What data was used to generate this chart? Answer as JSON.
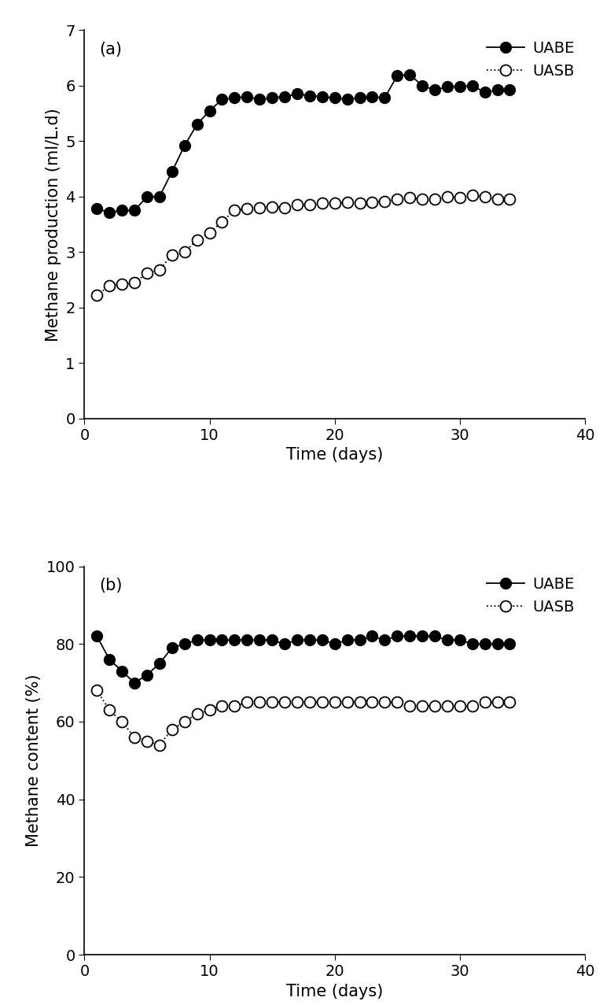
{
  "uabe_production_x": [
    1,
    2,
    3,
    4,
    5,
    6,
    7,
    8,
    9,
    10,
    11,
    12,
    13,
    14,
    15,
    16,
    17,
    18,
    19,
    20,
    21,
    22,
    23,
    24,
    25,
    26,
    27,
    28,
    29,
    30,
    31,
    32,
    33,
    34
  ],
  "uabe_production_y": [
    3.78,
    3.72,
    3.75,
    3.75,
    4.0,
    4.0,
    4.45,
    4.92,
    5.3,
    5.55,
    5.75,
    5.78,
    5.8,
    5.75,
    5.78,
    5.8,
    5.85,
    5.82,
    5.8,
    5.78,
    5.75,
    5.78,
    5.8,
    5.78,
    6.18,
    6.2,
    6.0,
    5.92,
    5.98,
    5.98,
    6.0,
    5.88,
    5.92,
    5.92
  ],
  "uasb_production_x": [
    1,
    2,
    3,
    4,
    5,
    6,
    7,
    8,
    9,
    10,
    11,
    12,
    13,
    14,
    15,
    16,
    17,
    18,
    19,
    20,
    21,
    22,
    23,
    24,
    25,
    26,
    27,
    28,
    29,
    30,
    31,
    32,
    33,
    34
  ],
  "uasb_production_y": [
    2.22,
    2.4,
    2.42,
    2.45,
    2.62,
    2.68,
    2.95,
    3.0,
    3.22,
    3.35,
    3.55,
    3.75,
    3.78,
    3.8,
    3.82,
    3.8,
    3.85,
    3.85,
    3.88,
    3.88,
    3.9,
    3.88,
    3.9,
    3.92,
    3.95,
    3.98,
    3.95,
    3.95,
    4.0,
    3.98,
    4.02,
    4.0,
    3.95,
    3.95
  ],
  "uabe_content_x": [
    1,
    2,
    3,
    4,
    5,
    6,
    7,
    8,
    9,
    10,
    11,
    12,
    13,
    14,
    15,
    16,
    17,
    18,
    19,
    20,
    21,
    22,
    23,
    24,
    25,
    26,
    27,
    28,
    29,
    30,
    31,
    32,
    33,
    34
  ],
  "uabe_content_y": [
    82,
    76,
    73,
    70,
    72,
    75,
    79,
    80,
    81,
    81,
    81,
    81,
    81,
    81,
    81,
    80,
    81,
    81,
    81,
    80,
    81,
    81,
    82,
    81,
    82,
    82,
    82,
    82,
    81,
    81,
    80,
    80,
    80,
    80
  ],
  "uasb_content_x": [
    1,
    2,
    3,
    4,
    5,
    6,
    7,
    8,
    9,
    10,
    11,
    12,
    13,
    14,
    15,
    16,
    17,
    18,
    19,
    20,
    21,
    22,
    23,
    24,
    25,
    26,
    27,
    28,
    29,
    30,
    31,
    32,
    33,
    34
  ],
  "uasb_content_y": [
    68,
    63,
    60,
    56,
    55,
    54,
    58,
    60,
    62,
    63,
    64,
    64,
    65,
    65,
    65,
    65,
    65,
    65,
    65,
    65,
    65,
    65,
    65,
    65,
    65,
    64,
    64,
    64,
    64,
    64,
    64,
    65,
    65,
    65
  ],
  "plot_a_ylabel": "Methane production (ml/L.d)",
  "plot_b_ylabel": "Methane content (%)",
  "xlabel": "Time (days)",
  "label_a": "(a)",
  "label_b": "(b)",
  "legend_uabe": "UABE",
  "legend_uasb": "UASB",
  "production_ylim": [
    0,
    7
  ],
  "content_ylim": [
    0,
    100
  ],
  "xlim": [
    0,
    40
  ],
  "production_yticks": [
    0,
    1,
    2,
    3,
    4,
    5,
    6,
    7
  ],
  "content_yticks": [
    0,
    20,
    40,
    60,
    80,
    100
  ],
  "xticks": [
    0,
    10,
    20,
    30,
    40
  ],
  "line_color": "#000000",
  "bg_color": "#ffffff",
  "marker_size": 10,
  "font_size": 14,
  "label_font_size": 15,
  "tick_font_size": 14
}
